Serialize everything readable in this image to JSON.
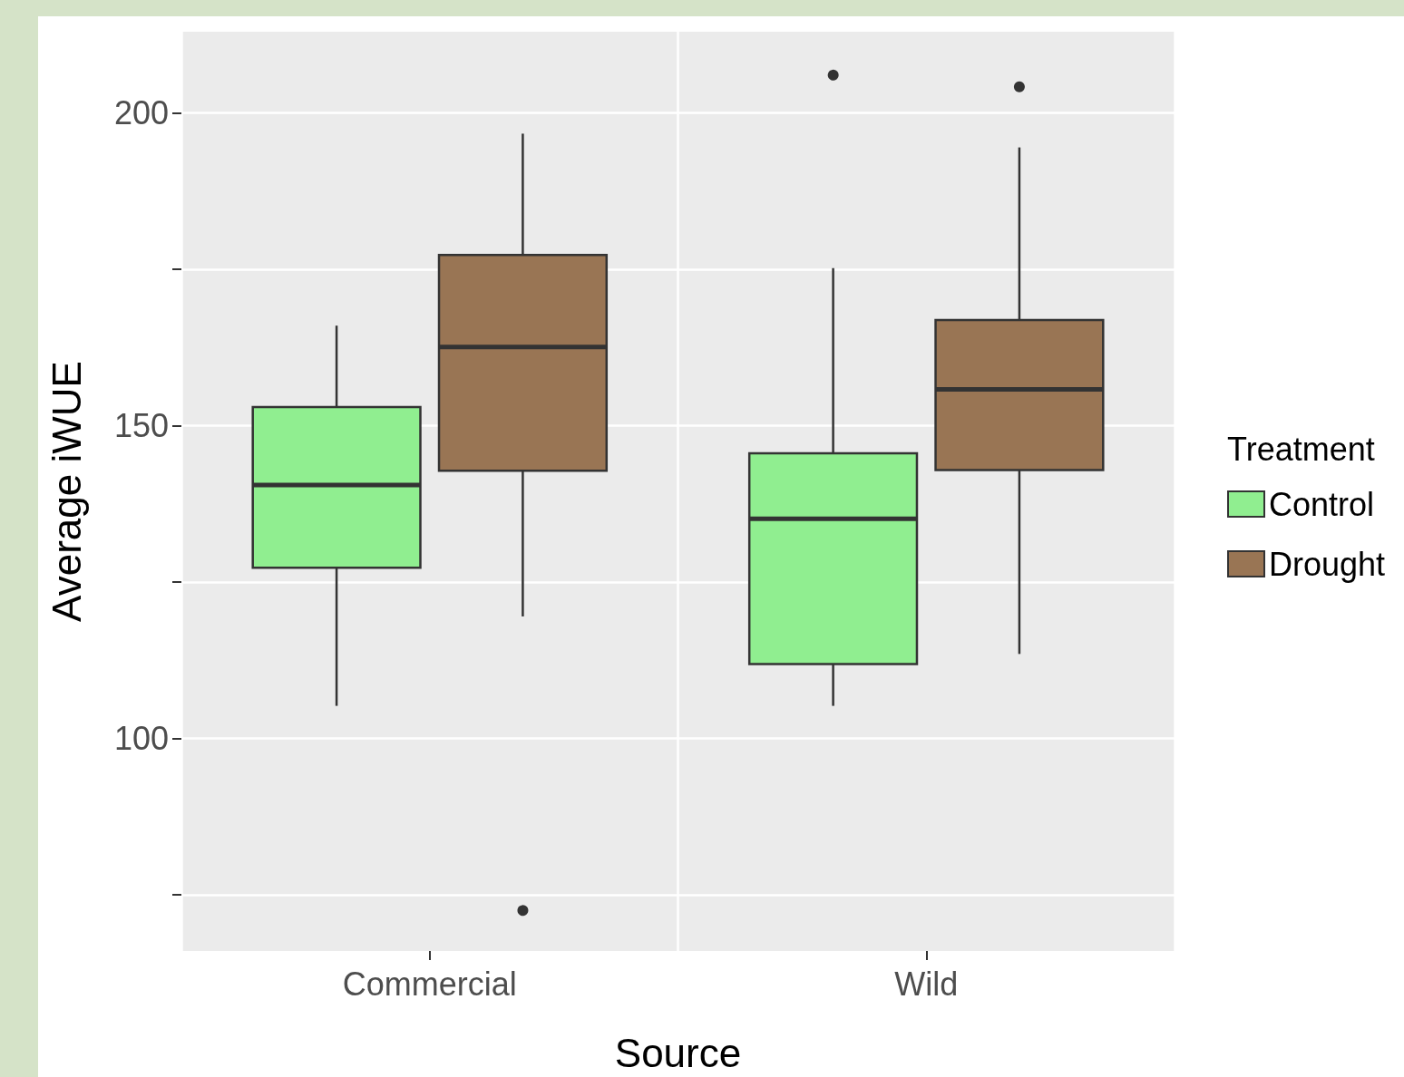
{
  "chart_data": {
    "type": "box",
    "xlabel": "Source",
    "ylabel": "Average iWUE",
    "legend_title": "Treatment",
    "legend": "right",
    "grid": true,
    "categories": [
      "Commercial",
      "Wild"
    ],
    "ylim": [
      66,
      213
    ],
    "yticks": [
      {
        "value": 75,
        "label": null
      },
      100,
      {
        "value": 125,
        "label": null
      },
      150,
      {
        "value": 175,
        "label": null
      },
      200
    ],
    "series": [
      {
        "name": "Control",
        "color": "#90ee90",
        "boxes": [
          {
            "low": 105.2,
            "q1": 127.3,
            "median": 140.5,
            "q3": 153.0,
            "high": 166.0
          },
          {
            "low": 105.2,
            "q1": 111.9,
            "median": 135.1,
            "q3": 145.6,
            "high": 175.2,
            "outliers": [
              206.2
            ]
          }
        ]
      },
      {
        "name": "Drought",
        "color": "#997554",
        "boxes": [
          {
            "low": 119.5,
            "q1": 142.8,
            "median": 162.6,
            "q3": 177.3,
            "high": 196.7,
            "outliers": [
              72.6
            ]
          },
          {
            "low": 113.5,
            "q1": 142.9,
            "median": 155.8,
            "q3": 166.9,
            "high": 194.5,
            "outliers": [
              204.2
            ]
          }
        ]
      }
    ]
  }
}
